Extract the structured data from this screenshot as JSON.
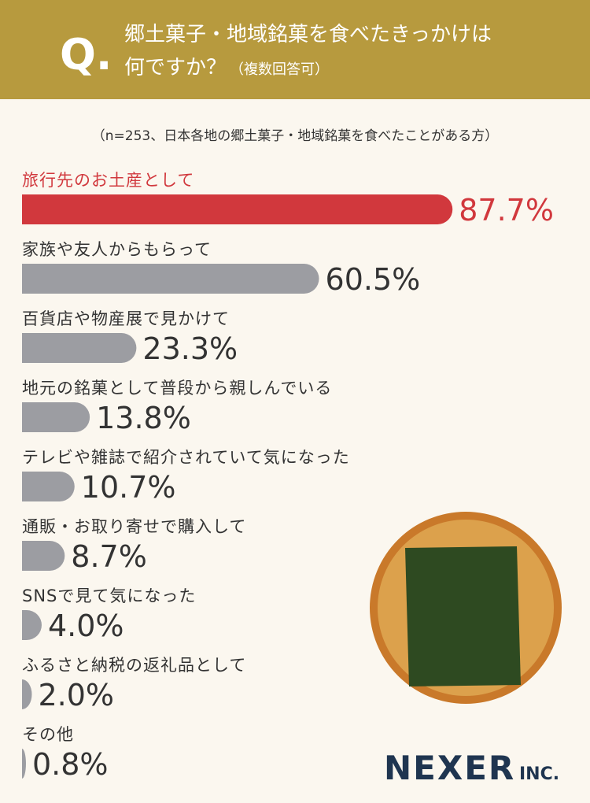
{
  "header": {
    "q_mark": "Q.",
    "title": [
      "郷土菓子・地域銘菓を食べたきっかけは",
      "何ですか？"
    ],
    "note": "（複数回答可）"
  },
  "chart_data": {
    "type": "hbar",
    "subtitle": "（n=253、日本各地の郷土菓子・地域銘菓を食べたことがある方）",
    "categories": [
      "旅行先のお土産として",
      "家族や友人からもらって",
      "百貨店や物産展で見かけて",
      "地元の銘菓として普段から親しんでいる",
      "テレビや雑誌で紹介されていて気になった",
      "通販・お取り寄せで購入して",
      "SNSで見て気になった",
      "ふるさと納税の返礼品として",
      "その他"
    ],
    "values": [
      87.7,
      60.5,
      23.3,
      13.8,
      10.7,
      8.7,
      4.0,
      2.0,
      0.8
    ],
    "value_labels": [
      "87.7%",
      "60.5%",
      "23.3%",
      "13.8%",
      "10.7%",
      "8.7%",
      "4.0%",
      "2.0%",
      "0.8%"
    ],
    "colors": [
      "#d1383d",
      "#9c9da2",
      "#9c9da2",
      "#9c9da2",
      "#9c9da2",
      "#9c9da2",
      "#9c9da2",
      "#9c9da2",
      "#9c9da2"
    ],
    "xlim": [
      0,
      100
    ]
  },
  "brand": {
    "name": "NEXER",
    "suffix": "INC."
  }
}
